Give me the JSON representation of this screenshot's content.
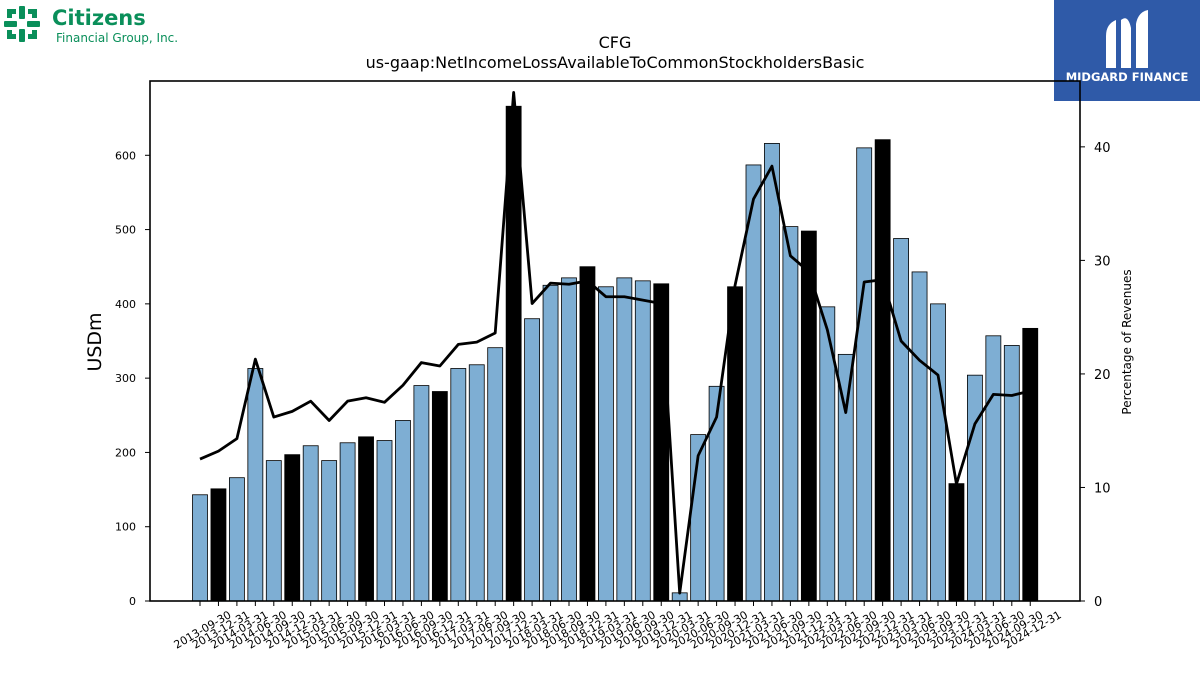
{
  "brand": {
    "name": "Citizens",
    "subtitle": "Financial Group, Inc.",
    "color": "#0a8f5a"
  },
  "watermark": {
    "text": "MIDGARD FINANCE",
    "color": "#2f5aa8"
  },
  "chart_data": {
    "type": "bar",
    "title": "CFG",
    "subtitle": "us-gaap:NetIncomeLossAvailableToCommonStockholdersBasic",
    "ylabel": "USDm",
    "y2label": "Percentage of Revenues",
    "ylim": [
      0,
      700
    ],
    "y2lim": [
      0,
      45.8
    ],
    "yticks": [
      0,
      100,
      200,
      300,
      400,
      500,
      600
    ],
    "y2ticks": [
      0,
      10,
      20,
      30,
      40
    ],
    "grid": false,
    "colors": {
      "quarter": "#7eaed3",
      "year_end": "#000000",
      "line": "#000000"
    },
    "categories": [
      "2013-09-30",
      "2013-12-31",
      "2014-03-31",
      "2014-06-30",
      "2014-09-30",
      "2014-12-31",
      "2015-03-31",
      "2015-06-30",
      "2015-09-30",
      "2015-12-31",
      "2016-03-31",
      "2016-06-30",
      "2016-09-30",
      "2016-12-31",
      "2017-03-31",
      "2017-06-30",
      "2017-09-30",
      "2017-12-31",
      "2018-03-31",
      "2018-06-30",
      "2018-09-30",
      "2018-12-31",
      "2019-03-31",
      "2019-06-30",
      "2019-09-30",
      "2019-12-31",
      "2020-03-31",
      "2020-06-30",
      "2020-09-30",
      "2020-12-31",
      "2021-03-31",
      "2021-06-30",
      "2021-09-30",
      "2021-12-31",
      "2022-03-31",
      "2022-06-30",
      "2022-09-30",
      "2022-12-31",
      "2023-03-31",
      "2023-06-30",
      "2023-09-30",
      "2023-12-31",
      "2024-03-31",
      "2024-06-30",
      "2024-09-30",
      "2024-12-31"
    ],
    "series": [
      {
        "kind": "bar",
        "values": [
          143,
          151,
          166,
          313,
          189,
          197,
          209,
          189,
          213,
          221,
          216,
          243,
          290,
          282,
          313,
          318,
          341,
          666,
          380,
          425,
          435,
          450,
          423,
          435,
          431,
          427,
          11,
          224,
          289,
          423,
          587,
          616,
          504,
          498,
          396,
          332,
          610,
          621,
          488,
          443,
          400,
          158,
          304,
          357,
          344,
          367
        ],
        "year_end": [
          false,
          true,
          false,
          false,
          false,
          true,
          false,
          false,
          false,
          true,
          false,
          false,
          false,
          true,
          false,
          false,
          false,
          true,
          false,
          false,
          false,
          true,
          false,
          false,
          false,
          true,
          false,
          false,
          false,
          true,
          false,
          false,
          false,
          true,
          false,
          false,
          false,
          true,
          false,
          false,
          false,
          true,
          false,
          false,
          false,
          true
        ]
      },
      {
        "kind": "line",
        "axis": "right",
        "values": [
          12.5,
          13.2,
          14.3,
          21.3,
          16.2,
          16.7,
          17.6,
          15.9,
          17.6,
          17.9,
          17.5,
          19.0,
          21.0,
          20.7,
          22.6,
          22.8,
          23.6,
          44.8,
          26.2,
          28.0,
          27.9,
          28.2,
          26.8,
          26.8,
          26.5,
          26.2,
          0.7,
          12.8,
          16.2,
          27.8,
          35.4,
          38.3,
          30.4,
          29.0,
          23.9,
          16.6,
          28.1,
          28.3,
          22.9,
          21.2,
          19.9,
          10.3,
          15.6,
          18.2,
          18.1,
          18.5
        ]
      }
    ]
  }
}
